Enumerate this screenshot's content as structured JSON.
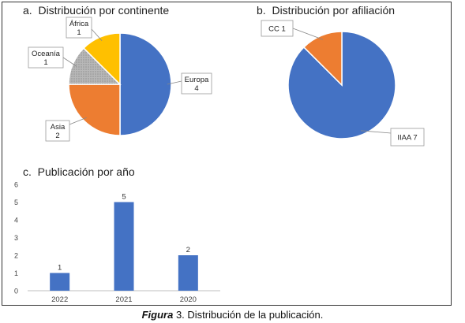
{
  "chart_data": [
    {
      "type": "pie",
      "title": "a.  Distribución por continente",
      "slices": [
        {
          "label": "Europa",
          "value": 4,
          "color": "#4472C4"
        },
        {
          "label": "Asia",
          "value": 2,
          "color": "#ED7D31"
        },
        {
          "label": "Oceanía",
          "value": 1,
          "color": "#A5A5A5"
        },
        {
          "label": "África",
          "value": 1,
          "color": "#FFC000"
        }
      ]
    },
    {
      "type": "pie",
      "title": "b.  Distribución por afiliación",
      "slices": [
        {
          "label": "IIAA",
          "value": 7,
          "color": "#4472C4"
        },
        {
          "label": "CC",
          "value": 1,
          "color": "#ED7D31"
        }
      ]
    },
    {
      "type": "bar",
      "title": "c.  Publicación por año",
      "categories": [
        "2022",
        "2021",
        "2020"
      ],
      "values": [
        1,
        5,
        2
      ],
      "ylim": [
        0,
        6
      ],
      "yticks": [
        "0",
        "1",
        "2",
        "3",
        "4",
        "5",
        "6"
      ],
      "color": "#4472C4",
      "grid": false
    }
  ],
  "caption": {
    "bold": "Figura",
    "rest": " 3. Distribución de la publicación."
  }
}
